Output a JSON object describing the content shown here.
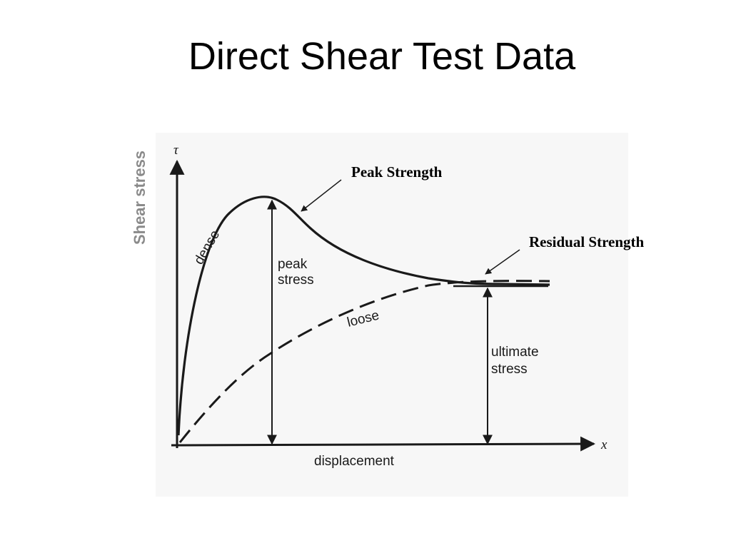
{
  "title": "Direct Shear Test Data",
  "y_side_label": "Shear stress",
  "y_axis_symbol": "τ",
  "x_axis_symbol": "x",
  "x_axis_label": "displacement",
  "curves": {
    "dense_label": "dense",
    "loose_label": "loose"
  },
  "annotations": {
    "peak_strength": "Peak Strength",
    "residual_strength": "Residual Strength",
    "peak_stress_line1": "peak",
    "peak_stress_line2": "stress",
    "ultimate_stress_line1": "ultimate",
    "ultimate_stress_line2": "stress"
  },
  "colors": {
    "ink": "#1a1a1a",
    "side_label": "#8a8a8a",
    "figure_background": "#f7f7f7"
  }
}
